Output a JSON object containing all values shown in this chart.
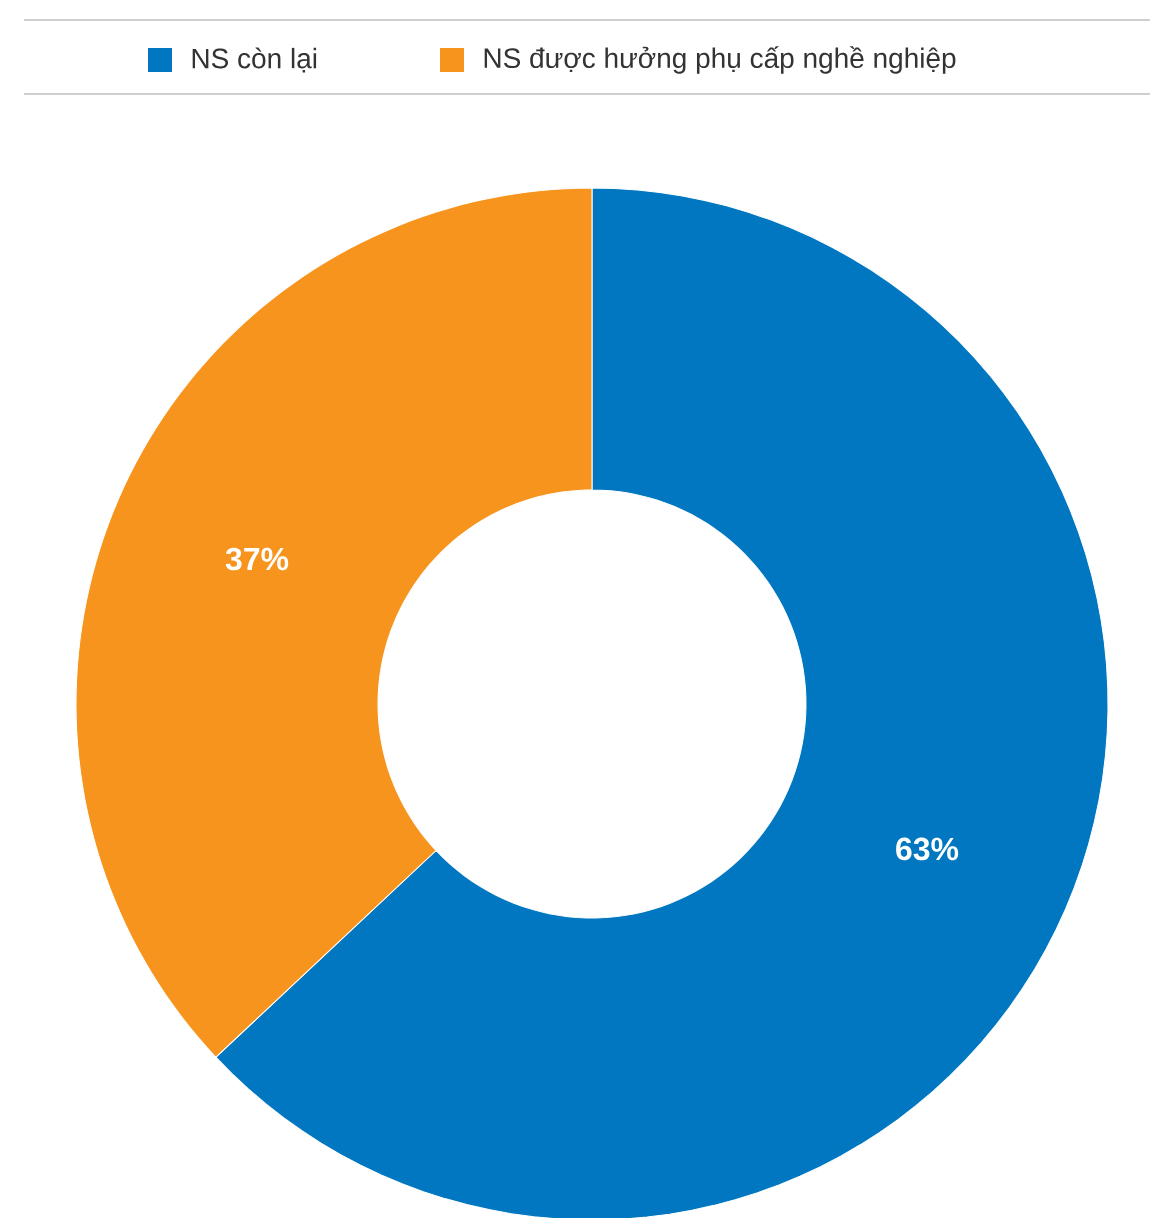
{
  "chart_data": {
    "type": "donut",
    "categories": [
      "NS còn lại",
      "NS được hưởng phụ cấp nghề nghiệp"
    ],
    "values": [
      63,
      37
    ],
    "colors": [
      "#0077c0",
      "#f7941d"
    ],
    "value_labels": [
      "63%",
      "37%"
    ],
    "legend": "top"
  }
}
